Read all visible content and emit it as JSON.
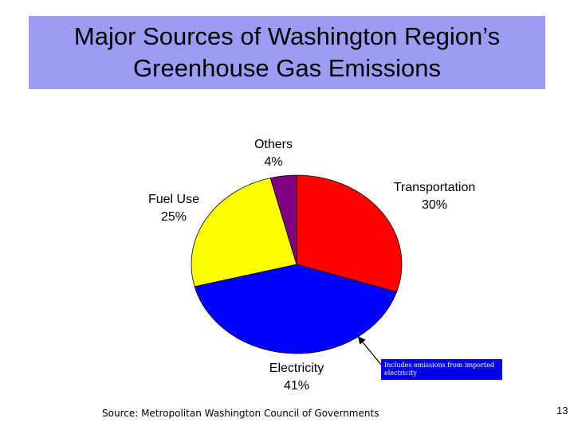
{
  "chart_data": {
    "type": "pie",
    "title": "Major Sources of Washington Region’s Greenhouse Gas Emissions",
    "categories": [
      "Transportation",
      "Electricity",
      "Fuel Use",
      "Others"
    ],
    "values": [
      30,
      41,
      25,
      4
    ],
    "value_labels": [
      "30%",
      "41%",
      "25%",
      "4%"
    ],
    "colors": [
      "#ff0000",
      "#0000ff",
      "#ffff00",
      "#800080"
    ],
    "annotation": "Includes emissions from imported electricity",
    "source": "Source:  Metropolitan Washington Council of Governments",
    "page_number": "13"
  }
}
